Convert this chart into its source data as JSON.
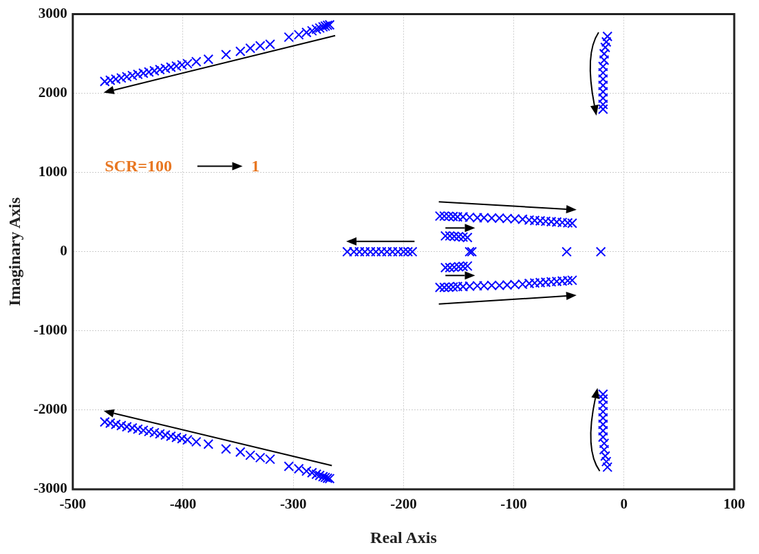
{
  "chart_data": {
    "type": "scatter",
    "xlabel": "Real Axis",
    "ylabel": "Imaginary Axis",
    "annotations": [
      "SCR=100",
      "1"
    ],
    "x": [
      -471,
      -466,
      -461,
      -456,
      -451,
      -446,
      -441,
      -436,
      -431,
      -426,
      -421,
      -416,
      -411,
      -406,
      -401,
      -396,
      -388,
      -377,
      -361,
      -348,
      -339,
      -330,
      -321,
      -304,
      -295,
      -288,
      -283,
      -279,
      -276,
      -273,
      -271,
      -269,
      -267,
      -471,
      -466,
      -461,
      -456,
      -451,
      -446,
      -441,
      -436,
      -431,
      -426,
      -421,
      -416,
      -411,
      -406,
      -401,
      -396,
      -388,
      -377,
      -361,
      -348,
      -339,
      -330,
      -321,
      -304,
      -295,
      -288,
      -283,
      -279,
      -276,
      -273,
      -271,
      -269,
      -267,
      -251,
      -245,
      -240,
      -235,
      -230,
      -225,
      -220,
      -215,
      -210,
      -205,
      -200,
      -196,
      -192,
      -167,
      -163,
      -159,
      -155,
      -151,
      -146,
      -140,
      -133,
      -127,
      -120,
      -113,
      -106,
      -99,
      -92,
      -86,
      -81,
      -76,
      -71,
      -66,
      -61,
      -56,
      -51,
      -47,
      -167,
      -163,
      -159,
      -155,
      -151,
      -146,
      -140,
      -133,
      -127,
      -120,
      -113,
      -106,
      -99,
      -92,
      -86,
      -81,
      -76,
      -71,
      -66,
      -61,
      -56,
      -51,
      -47,
      -162,
      -158,
      -154,
      -150,
      -146,
      -142,
      -162,
      -158,
      -154,
      -150,
      -146,
      -142,
      -140,
      -138,
      -52,
      -21,
      -15,
      -16,
      -17,
      -18,
      -18,
      -19,
      -19,
      -19,
      -19,
      -19,
      -19,
      -19,
      -19,
      -15,
      -16,
      -17,
      -18,
      -18,
      -19,
      -19,
      -19,
      -19,
      -19,
      -19,
      -19,
      -19
    ],
    "values": [
      2150,
      2165,
      2180,
      2195,
      2210,
      2225,
      2240,
      2255,
      2270,
      2285,
      2300,
      2315,
      2330,
      2345,
      2360,
      2375,
      2400,
      2430,
      2490,
      2530,
      2570,
      2600,
      2620,
      2710,
      2740,
      2770,
      2790,
      2810,
      2825,
      2840,
      2850,
      2860,
      2865,
      -2150,
      -2165,
      -2180,
      -2195,
      -2210,
      -2225,
      -2240,
      -2255,
      -2270,
      -2285,
      -2300,
      -2315,
      -2330,
      -2345,
      -2360,
      -2375,
      -2400,
      -2430,
      -2490,
      -2530,
      -2570,
      -2600,
      -2620,
      -2710,
      -2740,
      -2770,
      -2790,
      -2810,
      -2825,
      -2840,
      -2850,
      -2860,
      -2865,
      0,
      0,
      0,
      0,
      0,
      0,
      0,
      0,
      0,
      0,
      0,
      0,
      0,
      450,
      450,
      448,
      445,
      440,
      440,
      435,
      430,
      430,
      425,
      425,
      420,
      415,
      410,
      400,
      395,
      390,
      385,
      380,
      375,
      370,
      365,
      360,
      -450,
      -450,
      -448,
      -445,
      -440,
      -440,
      -435,
      -430,
      -430,
      -425,
      -425,
      -420,
      -415,
      -410,
      -400,
      -395,
      -390,
      -385,
      -380,
      -375,
      -370,
      -365,
      -360,
      200,
      200,
      195,
      190,
      185,
      180,
      -200,
      -200,
      -195,
      -190,
      -185,
      -180,
      0,
      0,
      0,
      0,
      2720,
      2650,
      2580,
      2500,
      2420,
      2340,
      2260,
      2180,
      2100,
      2020,
      1940,
      1860,
      1800,
      -2720,
      -2650,
      -2580,
      -2500,
      -2420,
      -2340,
      -2260,
      -2180,
      -2100,
      -2020,
      -1940,
      -1860,
      -1800
    ],
    "color": "#0000ff",
    "marker": "cross",
    "legend": false,
    "grid": true,
    "xlim": [
      -500,
      100
    ],
    "xticks": [
      -500,
      -400,
      -300,
      -200,
      -100,
      0,
      100
    ],
    "ylim": [
      -3000,
      3000
    ],
    "yticks": [
      -3000,
      -2000,
      -1000,
      0,
      1000,
      2000,
      3000
    ]
  }
}
